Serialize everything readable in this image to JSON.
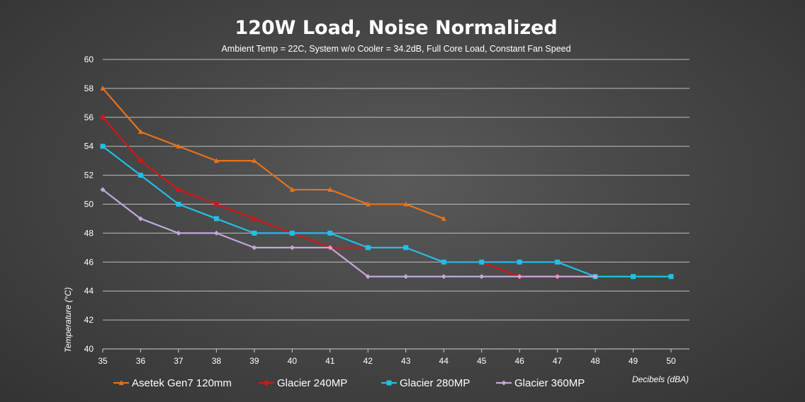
{
  "chart_data": {
    "type": "line",
    "title": "120W Load, Noise Normalized",
    "subtitle": "Ambient Temp = 22C, System w/o Cooler = 34.2dB, Full Core Load, Constant Fan Speed",
    "xlabel": "Decibels (dBA)",
    "ylabel": "Temperature  (°C)",
    "xlim": [
      35,
      50
    ],
    "ylim": [
      40,
      60
    ],
    "x_ticks": [
      35,
      36,
      37,
      38,
      39,
      40,
      41,
      42,
      43,
      44,
      45,
      46,
      47,
      48,
      49,
      50
    ],
    "y_ticks": [
      40,
      42,
      44,
      46,
      48,
      50,
      52,
      54,
      56,
      58,
      60
    ],
    "grid": "horizontal",
    "legend_position": "bottom",
    "series": [
      {
        "name": "Asetek Gen7 120mm",
        "color": "#e8711c",
        "marker": "triangle",
        "x": [
          35,
          36,
          37,
          38,
          39,
          40,
          41,
          42,
          43,
          44
        ],
        "y": [
          58,
          55,
          54,
          53,
          53,
          51,
          51,
          50,
          50,
          49
        ]
      },
      {
        "name": "Glacier 240MP",
        "color": "#d41616",
        "marker": "circle",
        "x": [
          35,
          36,
          37,
          38,
          39,
          40,
          41,
          42,
          43,
          44,
          45,
          46,
          47,
          48
        ],
        "y": [
          56,
          53,
          51,
          50,
          49,
          48,
          47,
          47,
          47,
          46,
          46,
          45,
          45,
          45
        ]
      },
      {
        "name": "Glacier 280MP",
        "color": "#1fc0e8",
        "marker": "square",
        "x": [
          35,
          36,
          37,
          38,
          39,
          40,
          41,
          42,
          43,
          44,
          45,
          46,
          47,
          48,
          49,
          50
        ],
        "y": [
          54,
          52,
          50,
          49,
          48,
          48,
          48,
          47,
          47,
          46,
          46,
          46,
          46,
          45,
          45,
          45
        ]
      },
      {
        "name": "Glacier 360MP",
        "color": "#c3a8dc",
        "marker": "diamond",
        "x": [
          35,
          36,
          37,
          38,
          39,
          40,
          41,
          42,
          43,
          44,
          45,
          46,
          47,
          48
        ],
        "y": [
          51,
          49,
          48,
          48,
          47,
          47,
          47,
          45,
          45,
          45,
          45,
          45,
          45,
          45
        ]
      }
    ]
  }
}
